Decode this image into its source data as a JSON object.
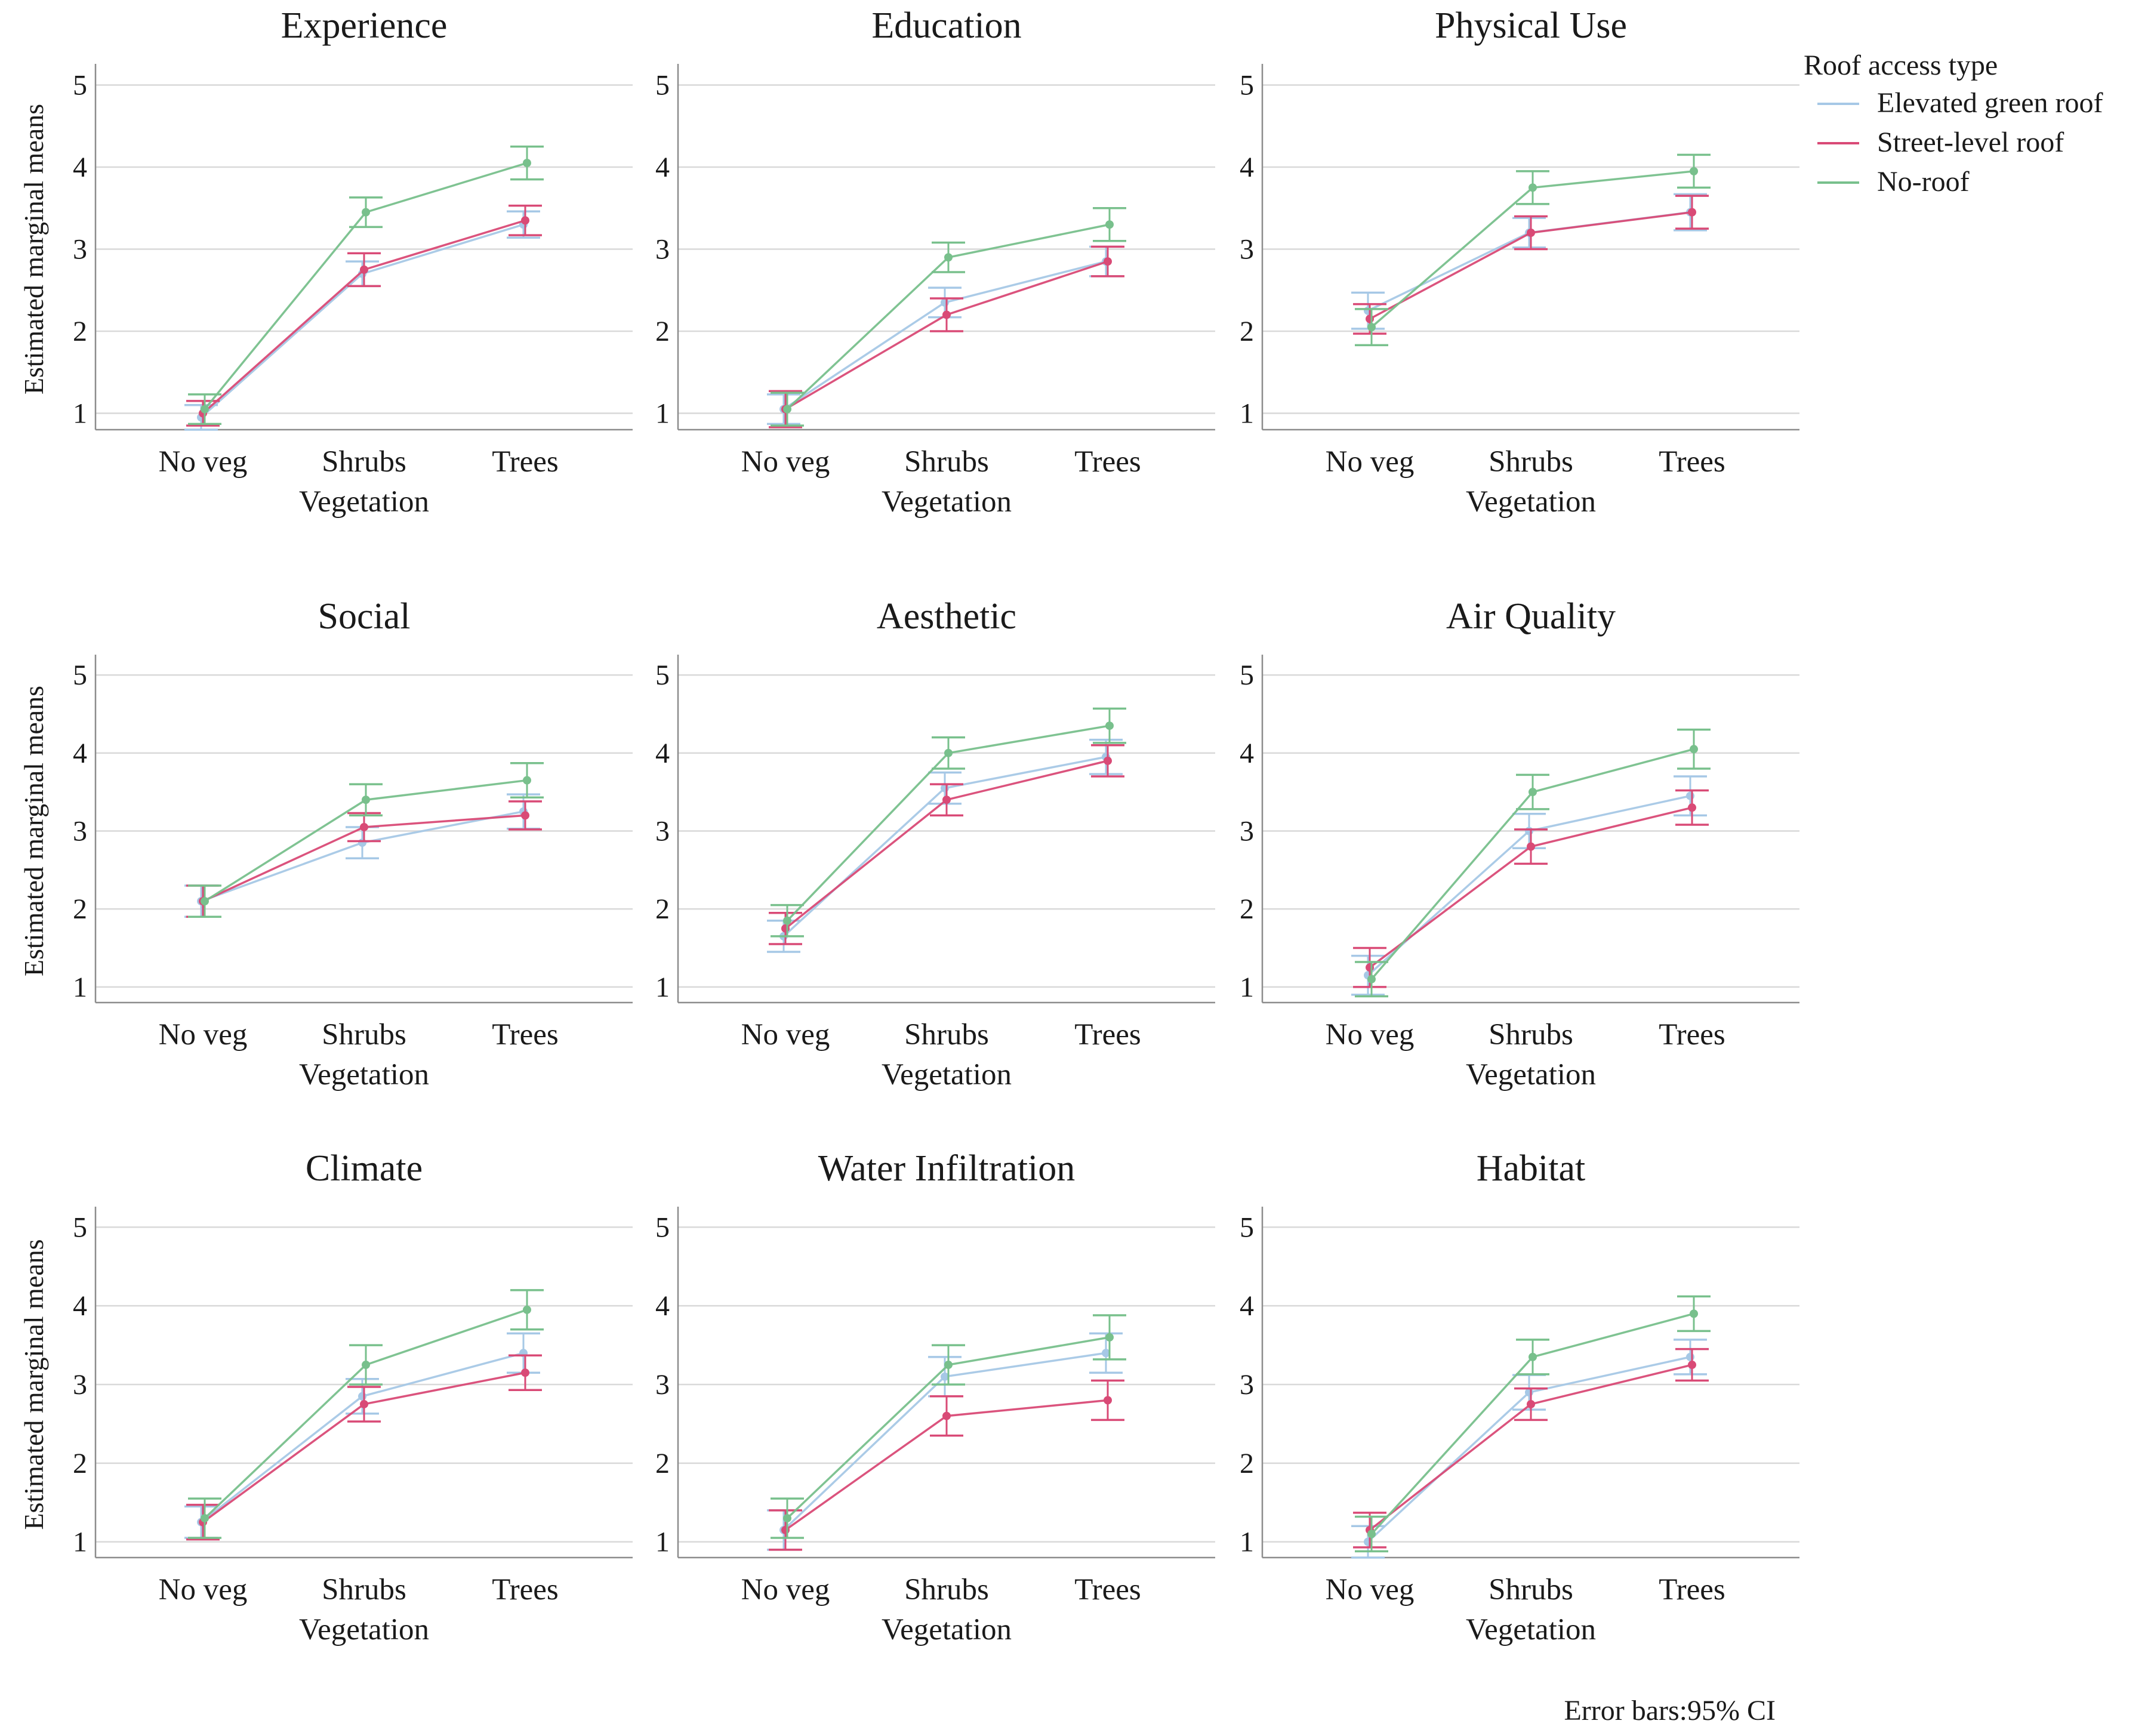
{
  "chart_data": {
    "type": "line",
    "y_axis_label": "Estimated marginal means",
    "x_axis_label": "Vegetation",
    "categories": [
      "No veg",
      "Shrubs",
      "Trees"
    ],
    "y_ticks": [
      "1",
      "2",
      "3",
      "4",
      "5"
    ],
    "ylim": [
      0.8,
      5.2
    ],
    "legend": {
      "title": "Roof access type",
      "position": "top-right",
      "items": [
        {
          "name": "Elevated green roof",
          "color": "#a6c8e6"
        },
        {
          "name": "Street-level roof",
          "color": "#d94a76"
        },
        {
          "name": "No-roof",
          "color": "#78c08c"
        }
      ]
    },
    "note": "Error bars:95% CI",
    "panels": [
      {
        "title": "Experience",
        "series": [
          {
            "name": "Elevated green roof",
            "values": [
              0.95,
              2.7,
              3.3
            ],
            "ci": [
              0.15,
              0.15,
              0.16
            ]
          },
          {
            "name": "Street-level roof",
            "values": [
              1.0,
              2.75,
              3.35
            ],
            "ci": [
              0.15,
              0.2,
              0.18
            ]
          },
          {
            "name": "No-roof",
            "values": [
              1.05,
              3.45,
              4.05
            ],
            "ci": [
              0.18,
              0.18,
              0.2
            ]
          }
        ]
      },
      {
        "title": "Education",
        "series": [
          {
            "name": "Elevated green roof",
            "values": [
              1.05,
              2.35,
              2.85
            ],
            "ci": [
              0.18,
              0.18,
              0.18
            ]
          },
          {
            "name": "Street-level roof",
            "values": [
              1.05,
              2.2,
              2.85
            ],
            "ci": [
              0.22,
              0.2,
              0.18
            ]
          },
          {
            "name": "No-roof",
            "values": [
              1.05,
              2.9,
              3.3
            ],
            "ci": [
              0.2,
              0.18,
              0.2
            ]
          }
        ]
      },
      {
        "title": "Physical Use",
        "series": [
          {
            "name": "Elevated green roof",
            "values": [
              2.25,
              3.2,
              3.45
            ],
            "ci": [
              0.22,
              0.18,
              0.22
            ]
          },
          {
            "name": "Street-level roof",
            "values": [
              2.15,
              3.2,
              3.45
            ],
            "ci": [
              0.18,
              0.2,
              0.2
            ]
          },
          {
            "name": "No-roof",
            "values": [
              2.05,
              3.75,
              3.95
            ],
            "ci": [
              0.22,
              0.2,
              0.2
            ]
          }
        ]
      },
      {
        "title": "Social",
        "series": [
          {
            "name": "Elevated green roof",
            "values": [
              2.1,
              2.85,
              3.25
            ],
            "ci": [
              0.2,
              0.2,
              0.22
            ]
          },
          {
            "name": "Street-level roof",
            "values": [
              2.1,
              3.05,
              3.2
            ],
            "ci": [
              0.2,
              0.18,
              0.18
            ]
          },
          {
            "name": "No-roof",
            "values": [
              2.1,
              3.4,
              3.65
            ],
            "ci": [
              0.2,
              0.2,
              0.22
            ]
          }
        ]
      },
      {
        "title": "Aesthetic",
        "series": [
          {
            "name": "Elevated green roof",
            "values": [
              1.65,
              3.55,
              3.95
            ],
            "ci": [
              0.2,
              0.2,
              0.22
            ]
          },
          {
            "name": "Street-level roof",
            "values": [
              1.75,
              3.4,
              3.9
            ],
            "ci": [
              0.2,
              0.2,
              0.2
            ]
          },
          {
            "name": "No-roof",
            "values": [
              1.85,
              4.0,
              4.35
            ],
            "ci": [
              0.2,
              0.2,
              0.22
            ]
          }
        ]
      },
      {
        "title": "Air Quality",
        "series": [
          {
            "name": "Elevated green roof",
            "values": [
              1.15,
              3.0,
              3.45
            ],
            "ci": [
              0.25,
              0.22,
              0.25
            ]
          },
          {
            "name": "Street-level roof",
            "values": [
              1.25,
              2.8,
              3.3
            ],
            "ci": [
              0.25,
              0.22,
              0.22
            ]
          },
          {
            "name": "No-roof",
            "values": [
              1.1,
              3.5,
              4.05
            ],
            "ci": [
              0.22,
              0.22,
              0.25
            ]
          }
        ]
      },
      {
        "title": "Climate",
        "series": [
          {
            "name": "Elevated green roof",
            "values": [
              1.25,
              2.85,
              3.4
            ],
            "ci": [
              0.2,
              0.22,
              0.25
            ]
          },
          {
            "name": "Street-level roof",
            "values": [
              1.25,
              2.75,
              3.15
            ],
            "ci": [
              0.22,
              0.22,
              0.22
            ]
          },
          {
            "name": "No-roof",
            "values": [
              1.3,
              3.25,
              3.95
            ],
            "ci": [
              0.25,
              0.25,
              0.25
            ]
          }
        ]
      },
      {
        "title": "Water Infiltration",
        "series": [
          {
            "name": "Elevated green roof",
            "values": [
              1.15,
              3.1,
              3.4
            ],
            "ci": [
              0.25,
              0.25,
              0.25
            ]
          },
          {
            "name": "Street-level roof",
            "values": [
              1.15,
              2.6,
              2.8
            ],
            "ci": [
              0.25,
              0.25,
              0.25
            ]
          },
          {
            "name": "No-roof",
            "values": [
              1.3,
              3.25,
              3.6
            ],
            "ci": [
              0.25,
              0.25,
              0.28
            ]
          }
        ]
      },
      {
        "title": "Habitat",
        "series": [
          {
            "name": "Elevated green roof",
            "values": [
              1.0,
              2.9,
              3.35
            ],
            "ci": [
              0.2,
              0.22,
              0.22
            ]
          },
          {
            "name": "Street-level roof",
            "values": [
              1.15,
              2.75,
              3.25
            ],
            "ci": [
              0.22,
              0.2,
              0.2
            ]
          },
          {
            "name": "No-roof",
            "values": [
              1.1,
              3.35,
              3.9
            ],
            "ci": [
              0.22,
              0.22,
              0.22
            ]
          }
        ]
      }
    ]
  }
}
